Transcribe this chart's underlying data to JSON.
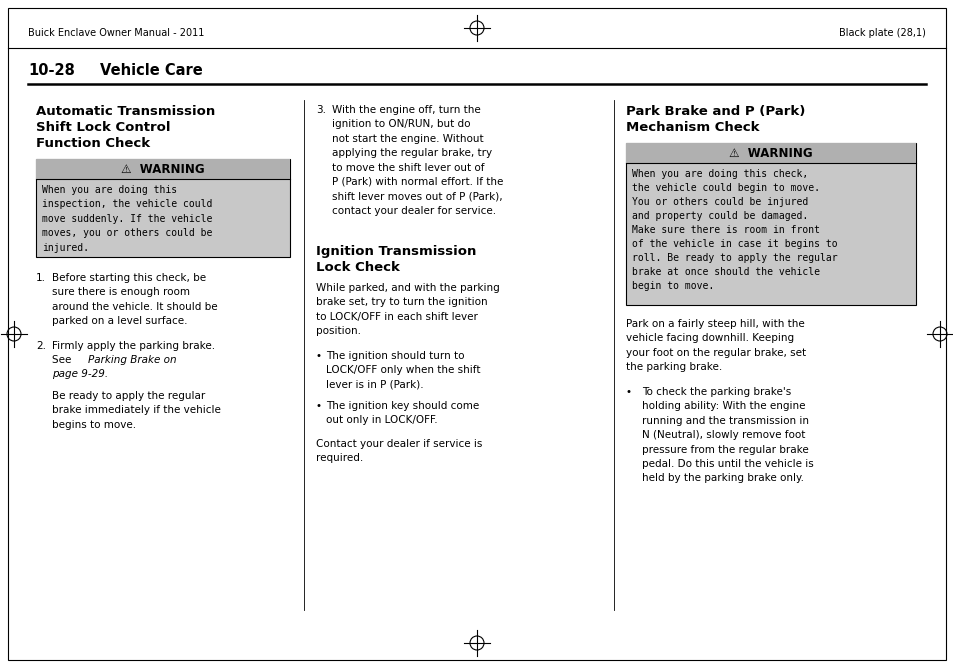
{
  "background_color": "#ffffff",
  "header_left": "Buick Enclave Owner Manual - 2011",
  "header_right": "Black plate (28,1)",
  "section_number": "10-28",
  "section_title": "Vehicle Care",
  "warning_bg": "#c8c8c8",
  "warning_title_bg": "#b0b0b0",
  "text_color": "#000000",
  "fs_header": 7.0,
  "fs_section": 10.5,
  "fs_heading": 9.5,
  "fs_body": 7.5,
  "fs_warn_title": 8.5
}
